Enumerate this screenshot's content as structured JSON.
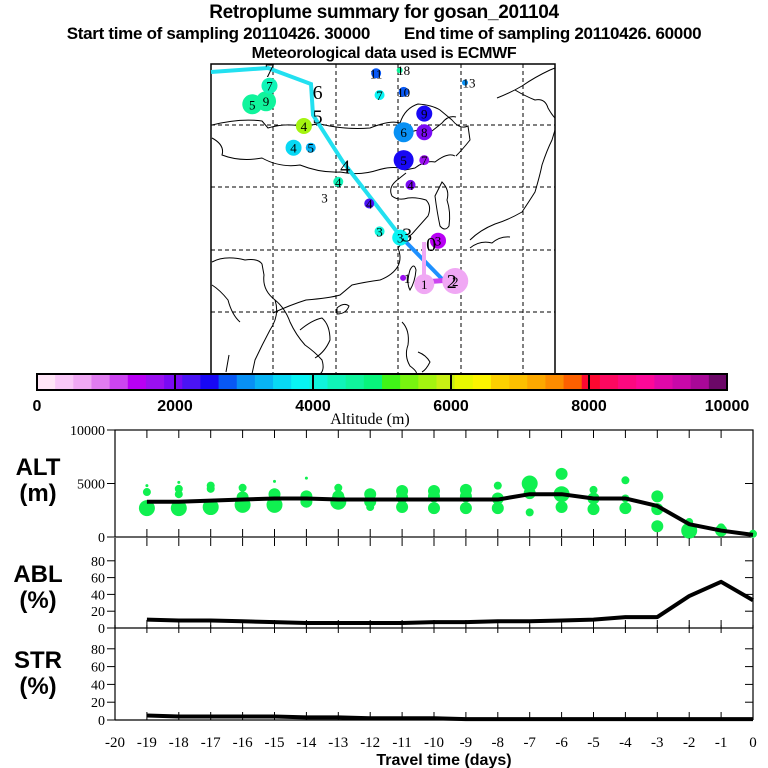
{
  "header": {
    "title": "Retroplume summary for gosan_201104",
    "start_label": "Start time of sampling 20110426. 30000",
    "end_label": "End time of sampling 20110426. 60000",
    "met_label": "Meteorological data used is ECMWF"
  },
  "map": {
    "track_color": "#22e0f0",
    "track_segment_color": "#1e90ff",
    "centroid_labels": [
      {
        "label": "7",
        "lon": 0.17,
        "lat": 0.02,
        "color": "#22e0f0"
      },
      {
        "label": "6",
        "lon": 0.31,
        "lat": 0.09,
        "color": "#22e0f0"
      },
      {
        "label": "5",
        "lon": 0.31,
        "lat": 0.17,
        "color": "#22e0f0"
      },
      {
        "label": "4",
        "lon": 0.39,
        "lat": 0.33,
        "color": "#22e0f0"
      },
      {
        "label": "3",
        "lon": 0.57,
        "lat": 0.55,
        "color": "#22e0f0"
      },
      {
        "label": "0",
        "lon": 0.64,
        "lat": 0.58,
        "color": "#1e90ff"
      },
      {
        "label": "2",
        "lon": 0.7,
        "lat": 0.7,
        "color": "#1e90ff"
      }
    ],
    "cluster_points": [
      {
        "label": "5",
        "x": 0.12,
        "y": 0.13,
        "alt": 4600,
        "size": 3
      },
      {
        "label": "9",
        "x": 0.16,
        "y": 0.12,
        "alt": 4500,
        "size": 3
      },
      {
        "label": "7",
        "x": 0.17,
        "y": 0.07,
        "alt": 4400,
        "size": 2
      },
      {
        "label": "4",
        "x": 0.27,
        "y": 0.2,
        "alt": 5600,
        "size": 2
      },
      {
        "label": "4",
        "x": 0.24,
        "y": 0.27,
        "alt": 3600,
        "size": 2
      },
      {
        "label": "5",
        "x": 0.29,
        "y": 0.27,
        "alt": 3300,
        "size": 1
      },
      {
        "label": "4",
        "x": 0.37,
        "y": 0.38,
        "alt": 4400,
        "size": 1
      },
      {
        "label": "3",
        "x": 0.33,
        "y": 0.43,
        "alt": 0,
        "size": 0
      },
      {
        "label": "11",
        "x": 0.48,
        "y": 0.03,
        "alt": 2800,
        "size": 1
      },
      {
        "label": "18",
        "x": 0.56,
        "y": 0.02,
        "alt": 4600,
        "size": 0
      },
      {
        "label": "13",
        "x": 0.75,
        "y": 0.06,
        "alt": 3000,
        "size": 0
      },
      {
        "label": "7",
        "x": 0.49,
        "y": 0.1,
        "alt": 3700,
        "size": 1
      },
      {
        "label": "10",
        "x": 0.56,
        "y": 0.09,
        "alt": 2800,
        "size": 1
      },
      {
        "label": "9",
        "x": 0.62,
        "y": 0.16,
        "alt": 2400,
        "size": 2
      },
      {
        "label": "6",
        "x": 0.56,
        "y": 0.22,
        "alt": 3000,
        "size": 3
      },
      {
        "label": "8",
        "x": 0.62,
        "y": 0.22,
        "alt": 2100,
        "size": 2
      },
      {
        "label": "5",
        "x": 0.56,
        "y": 0.31,
        "alt": 2400,
        "size": 3
      },
      {
        "label": "7",
        "x": 0.62,
        "y": 0.31,
        "alt": 1700,
        "size": 1
      },
      {
        "label": "4",
        "x": 0.58,
        "y": 0.39,
        "alt": 1900,
        "size": 1
      },
      {
        "label": "4",
        "x": 0.46,
        "y": 0.45,
        "alt": 2300,
        "size": 1
      },
      {
        "label": "3",
        "x": 0.49,
        "y": 0.54,
        "alt": 4200,
        "size": 1
      },
      {
        "label": "3",
        "x": 0.55,
        "y": 0.56,
        "alt": 3900,
        "size": 2
      },
      {
        "label": "3",
        "x": 0.66,
        "y": 0.57,
        "alt": 1400,
        "size": 2
      },
      {
        "label": "1",
        "x": 0.57,
        "y": 0.69,
        "alt": 1600,
        "size": 0
      },
      {
        "label": "1",
        "x": 0.62,
        "y": 0.71,
        "alt": 700,
        "size": 3
      },
      {
        "label": "2",
        "x": 0.71,
        "y": 0.7,
        "alt": 600,
        "size": 4
      }
    ]
  },
  "colorbar": {
    "ticks": [
      "0",
      "2000",
      "4000",
      "6000",
      "8000",
      "10000"
    ],
    "label": "Altitude (m)",
    "colors": [
      "#ffe6f7",
      "#f9c8f8",
      "#f0a8f4",
      "#e07cf0",
      "#cc44f0",
      "#b800f4",
      "#9a10f0",
      "#7a0af4",
      "#4a14f4",
      "#1808f4",
      "#0858f4",
      "#0890f4",
      "#08b4f4",
      "#08d8f4",
      "#08f4f4",
      "#10f4dc",
      "#10f4b8",
      "#10f49c",
      "#08f47c",
      "#40f418",
      "#78f410",
      "#a4f410",
      "#c8f014",
      "#e8f800",
      "#fcf400",
      "#fcd000",
      "#fcc000",
      "#fca800",
      "#fc8c00",
      "#fc6000",
      "#fc0830",
      "#fc0860",
      "#fc0880",
      "#fc0898",
      "#e008a8",
      "#c808a8",
      "#a80898",
      "#6c0868"
    ]
  },
  "chart_data": [
    {
      "type": "line",
      "panel": "ALT",
      "ylabel_line1": "ALT",
      "ylabel_line2": "(m)",
      "ylim": [
        0,
        10000
      ],
      "yticks": [
        "0",
        "5000",
        "10000"
      ],
      "x": [
        -19,
        -18,
        -17,
        -16,
        -15,
        -14,
        -13,
        -12,
        -11,
        -10,
        -9,
        -8,
        -7,
        -6,
        -5,
        -4,
        -3,
        -2,
        -1,
        0
      ],
      "series": [
        {
          "name": "mean altitude",
          "values": [
            3300,
            3300,
            3400,
            3500,
            3600,
            3600,
            3500,
            3500,
            3500,
            3500,
            3500,
            3500,
            4000,
            4000,
            3600,
            3600,
            2900,
            1200,
            600,
            200
          ]
        }
      ],
      "scatter": [
        {
          "x": -19,
          "y": 2700,
          "s": 3
        },
        {
          "x": -19,
          "y": 4200,
          "s": 1
        },
        {
          "x": -19,
          "y": 4800,
          "s": 0
        },
        {
          "x": -18,
          "y": 2700,
          "s": 3
        },
        {
          "x": -18,
          "y": 4000,
          "s": 1
        },
        {
          "x": -18,
          "y": 4500,
          "s": 1
        },
        {
          "x": -18,
          "y": 5100,
          "s": 0
        },
        {
          "x": -17,
          "y": 2800,
          "s": 3
        },
        {
          "x": -17,
          "y": 4500,
          "s": 1
        },
        {
          "x": -17,
          "y": 4800,
          "s": 1
        },
        {
          "x": -16,
          "y": 3000,
          "s": 3
        },
        {
          "x": -16,
          "y": 3700,
          "s": 2
        },
        {
          "x": -16,
          "y": 4600,
          "s": 1
        },
        {
          "x": -15,
          "y": 3000,
          "s": 3
        },
        {
          "x": -15,
          "y": 4000,
          "s": 2
        },
        {
          "x": -15,
          "y": 5200,
          "s": 0
        },
        {
          "x": -14,
          "y": 3300,
          "s": 2
        },
        {
          "x": -14,
          "y": 3800,
          "s": 2
        },
        {
          "x": -14,
          "y": 5500,
          "s": 0
        },
        {
          "x": -13,
          "y": 3300,
          "s": 3
        },
        {
          "x": -13,
          "y": 3800,
          "s": 2
        },
        {
          "x": -13,
          "y": 4600,
          "s": 1
        },
        {
          "x": -12,
          "y": 2800,
          "s": 1
        },
        {
          "x": -12,
          "y": 3300,
          "s": 2
        },
        {
          "x": -12,
          "y": 4000,
          "s": 2
        },
        {
          "x": -11,
          "y": 2800,
          "s": 2
        },
        {
          "x": -11,
          "y": 3700,
          "s": 2
        },
        {
          "x": -11,
          "y": 4300,
          "s": 2
        },
        {
          "x": -10,
          "y": 2700,
          "s": 2
        },
        {
          "x": -10,
          "y": 3800,
          "s": 2
        },
        {
          "x": -10,
          "y": 4300,
          "s": 2
        },
        {
          "x": -9,
          "y": 2700,
          "s": 2
        },
        {
          "x": -9,
          "y": 3800,
          "s": 2
        },
        {
          "x": -9,
          "y": 4400,
          "s": 2
        },
        {
          "x": -8,
          "y": 2700,
          "s": 2
        },
        {
          "x": -8,
          "y": 3600,
          "s": 2
        },
        {
          "x": -8,
          "y": 4800,
          "s": 1
        },
        {
          "x": -7,
          "y": 2300,
          "s": 1
        },
        {
          "x": -7,
          "y": 4100,
          "s": 2
        },
        {
          "x": -7,
          "y": 5000,
          "s": 3
        },
        {
          "x": -6,
          "y": 2800,
          "s": 2
        },
        {
          "x": -6,
          "y": 4000,
          "s": 3
        },
        {
          "x": -6,
          "y": 5900,
          "s": 2
        },
        {
          "x": -5,
          "y": 2600,
          "s": 2
        },
        {
          "x": -5,
          "y": 3600,
          "s": 2
        },
        {
          "x": -5,
          "y": 4400,
          "s": 1
        },
        {
          "x": -4,
          "y": 2700,
          "s": 2
        },
        {
          "x": -4,
          "y": 3600,
          "s": 1
        },
        {
          "x": -4,
          "y": 5300,
          "s": 1
        },
        {
          "x": -3,
          "y": 1000,
          "s": 2
        },
        {
          "x": -3,
          "y": 2600,
          "s": 2
        },
        {
          "x": -3,
          "y": 3800,
          "s": 2
        },
        {
          "x": -2,
          "y": 600,
          "s": 3
        },
        {
          "x": -2,
          "y": 1400,
          "s": 1
        },
        {
          "x": -1,
          "y": 600,
          "s": 2
        },
        {
          "x": -1,
          "y": 900,
          "s": 1
        },
        {
          "x": 0,
          "y": 300,
          "s": 1
        }
      ],
      "scatter_color": "#10f050"
    },
    {
      "type": "line",
      "panel": "ABL",
      "ylabel_line1": "ABL",
      "ylabel_line2": "(%)",
      "ylim": [
        0,
        100
      ],
      "yticks": [
        "0",
        "20",
        "40",
        "60",
        "80"
      ],
      "x": [
        -19,
        -18,
        -17,
        -16,
        -15,
        -14,
        -13,
        -12,
        -11,
        -10,
        -9,
        -8,
        -7,
        -6,
        -5,
        -4,
        -3,
        -2,
        -1,
        0
      ],
      "series": [
        {
          "name": "ABL fraction",
          "values": [
            10,
            9,
            9,
            8,
            7,
            6,
            6,
            6,
            6,
            7,
            7,
            8,
            8,
            9,
            10,
            13,
            13,
            38,
            55,
            33
          ]
        }
      ]
    },
    {
      "type": "line",
      "panel": "STR",
      "ylabel_line1": "STR",
      "ylabel_line2": "(%)",
      "ylim": [
        0,
        100
      ],
      "yticks": [
        "0",
        "20",
        "40",
        "60",
        "80"
      ],
      "x": [
        -19,
        -18,
        -17,
        -16,
        -15,
        -14,
        -13,
        -12,
        -11,
        -10,
        -9,
        -8,
        -7,
        -6,
        -5,
        -4,
        -3,
        -2,
        -1,
        0
      ],
      "series": [
        {
          "name": "stratospheric fraction",
          "values": [
            5,
            4,
            4,
            4,
            4,
            3,
            3,
            2,
            2,
            2,
            1,
            1,
            1,
            1,
            1,
            1,
            1,
            1,
            1,
            1
          ]
        }
      ],
      "xlabel": "Travel time (days)",
      "xticks": [
        "-20",
        "-19",
        "-18",
        "-17",
        "-16",
        "-15",
        "-14",
        "-13",
        "-12",
        "-11",
        "-10",
        "-9",
        "-8",
        "-7",
        "-6",
        "-5",
        "-4",
        "-3",
        "-2",
        "-1",
        "0"
      ],
      "xlim": [
        -20,
        0
      ]
    }
  ]
}
